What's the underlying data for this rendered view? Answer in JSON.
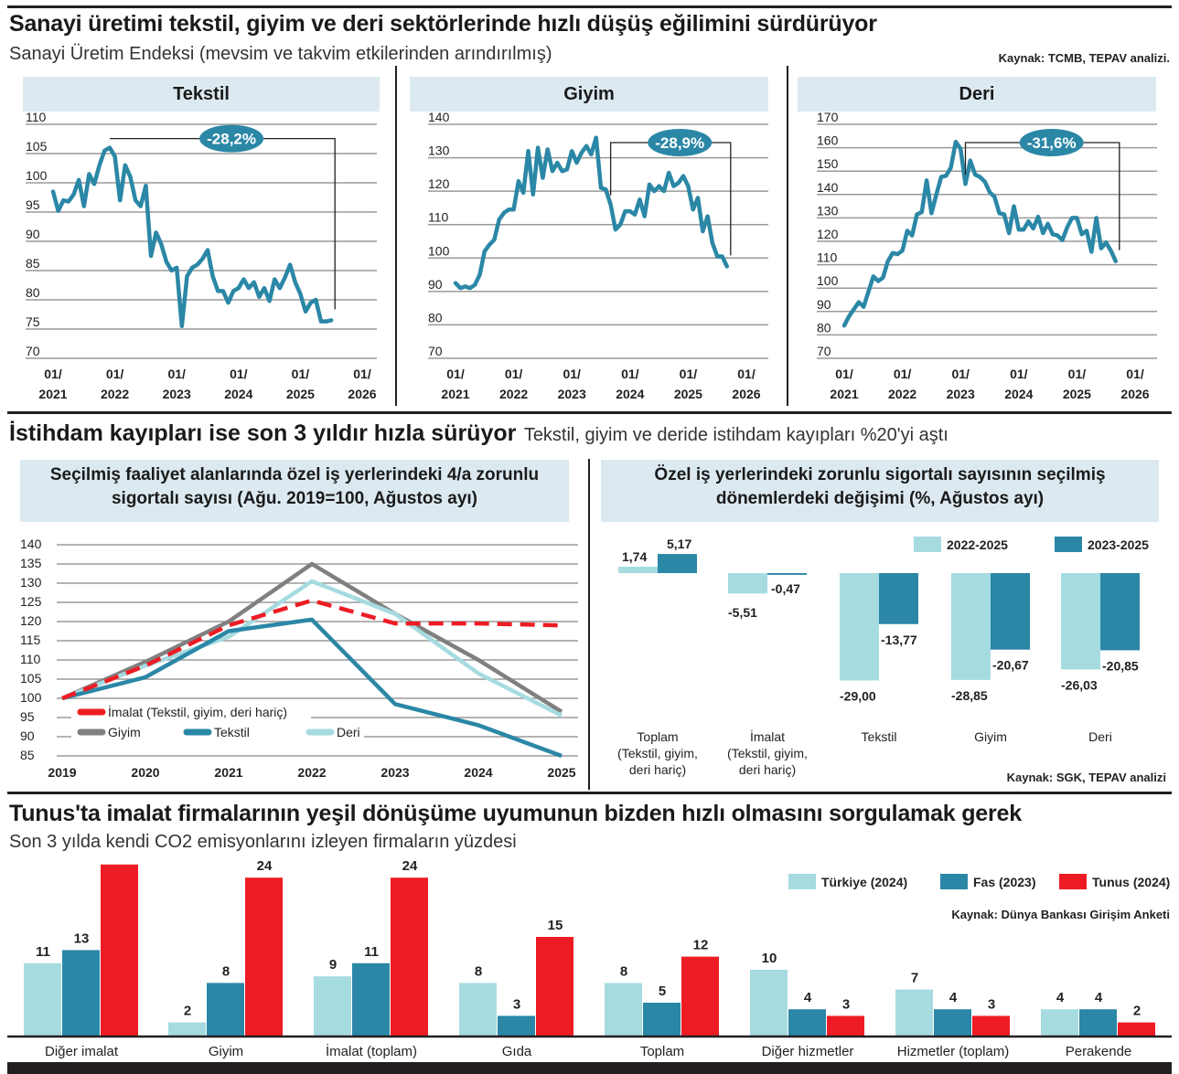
{
  "section1": {
    "title": "Sanayi üretimi tekstil, giyim ve deri sektörlerinde hızlı düşüş eğilimini sürdürüyor",
    "subtitle": "Sanayi Üretim Endeksi (mevsim ve takvim etkilerinden arındırılmış)",
    "source": "Kaynak: TCMB, TEPAV analizi."
  },
  "section2": {
    "title": "İstihdam kayıpları ise son 3 yıldır hızla sürüyor",
    "subtitle": "Tekstil, giyim ve deride istihdam kayıpları %20'yi aştı",
    "left_title": "Seçilmiş faaliyet alanlarında özel iş yerlerindeki 4/a zorunlu sigortalı sayısı (Ağu. 2019=100, Ağustos ayı)",
    "right_title": "Özel iş yerlerindeki zorunlu sigortalı sayısının seçilmiş dönemlerdeki değişimi (%, Ağustos ayı)",
    "source": "Kaynak: SGK, TEPAV analizi"
  },
  "section3": {
    "title": "Tunus'ta imalat firmalarının yeşil dönüşüme uyumunun bizden hızlı olmasını sorgulamak gerek",
    "subtitle": "Son 3 yılda kendi CO2 emisyonlarını izleyen firmaların yüzdesi",
    "source": "Kaynak: Dünya Bankası Girişim Anketi"
  },
  "colors": {
    "teal": "#2b87a6",
    "light_teal": "#a6dbe0",
    "red": "#ed1c24",
    "gray": "#808080",
    "panel_bg": "#dce9f0",
    "bubble": "#2b87a6"
  },
  "chart_data": [
    {
      "type": "line",
      "title": "Tekstil",
      "xlabel": "",
      "ylabel": "",
      "ylim": [
        70,
        110
      ],
      "yticks": [
        110,
        105,
        100,
        95,
        90,
        85,
        80,
        75,
        70
      ],
      "xtick_labels": [
        [
          "01/",
          "2021"
        ],
        [
          "01/",
          "2022"
        ],
        [
          "01/",
          "2023"
        ],
        [
          "01/",
          "2024"
        ],
        [
          "01/",
          "2025"
        ],
        [
          "01/",
          "2026"
        ]
      ],
      "x_start": "2021-01",
      "annotation": "-28,2%",
      "peak_index": 11,
      "series": [
        {
          "name": "Tekstil",
          "values": [
            98.5,
            95.2,
            97.0,
            96.8,
            98.0,
            100.5,
            96.0,
            101.5,
            99.8,
            103.0,
            105.5,
            106.0,
            104.5,
            97.0,
            103.0,
            101.0,
            97.0,
            96.0,
            99.5,
            87.5,
            91.5,
            89.5,
            86.5,
            85.0,
            85.5,
            75.5,
            84.0,
            85.5,
            86.0,
            87.0,
            88.5,
            84.0,
            81.5,
            81.5,
            79.5,
            81.5,
            82.0,
            83.5,
            82.0,
            83.0,
            80.5,
            82.0,
            79.8,
            83.5,
            82.0,
            83.8,
            86.0,
            83.0,
            81.0,
            78.0,
            79.5,
            80.0,
            76.3,
            76.3,
            76.5
          ]
        }
      ]
    },
    {
      "type": "line",
      "title": "Giyim",
      "xlabel": "",
      "ylabel": "",
      "ylim": [
        70,
        140
      ],
      "yticks": [
        140,
        130,
        120,
        110,
        100,
        90,
        80,
        70
      ],
      "xtick_labels": [
        [
          "01/",
          "2021"
        ],
        [
          "01/",
          "2022"
        ],
        [
          "01/",
          "2023"
        ],
        [
          "01/",
          "2024"
        ],
        [
          "01/",
          "2025"
        ],
        [
          "01/",
          "2026"
        ]
      ],
      "x_start": "2021-01",
      "annotation": "-28,9%",
      "peak_index": 32,
      "series": [
        {
          "name": "Giyim",
          "values": [
            92.5,
            91.0,
            91.5,
            91.0,
            92.0,
            95.0,
            102.0,
            104.0,
            105.5,
            111.5,
            113.5,
            114.5,
            114.5,
            123.0,
            119.5,
            132.0,
            119.0,
            133.0,
            124.0,
            132.5,
            126.0,
            128.5,
            126.0,
            126.5,
            132.0,
            128.5,
            131.5,
            133.5,
            131.0,
            136.0,
            121.0,
            120.5,
            116.0,
            108.5,
            110.0,
            114.0,
            114.0,
            113.0,
            117.5,
            112.5,
            122.0,
            120.0,
            121.5,
            120.0,
            125.5,
            121.5,
            122.5,
            124.5,
            121.5,
            114.5,
            118.0,
            108.0,
            112.5,
            104.5,
            100.5,
            100.5,
            97.5
          ]
        }
      ]
    },
    {
      "type": "line",
      "title": "Deri",
      "xlabel": "",
      "ylabel": "",
      "ylim": [
        70,
        170
      ],
      "yticks": [
        170,
        160,
        150,
        140,
        130,
        120,
        110,
        100,
        90,
        80,
        70
      ],
      "xtick_labels": [
        [
          "01/",
          "2021"
        ],
        [
          "01/",
          "2022"
        ],
        [
          "01/",
          "2023"
        ],
        [
          "01/",
          "2024"
        ],
        [
          "01/",
          "2025"
        ],
        [
          "01/",
          "2026"
        ]
      ],
      "x_start": "2021-01",
      "annotation": "-31,6%",
      "peak_index": 25,
      "series": [
        {
          "name": "Deri",
          "values": [
            84.0,
            88.0,
            91.0,
            94.0,
            92.0,
            98.5,
            105.0,
            103.0,
            104.5,
            111.5,
            115.0,
            114.5,
            116.0,
            124.5,
            122.5,
            131.5,
            132.5,
            146.0,
            132.0,
            140.0,
            147.5,
            148.0,
            151.5,
            162.5,
            159.5,
            144.5,
            154.5,
            148.5,
            147.5,
            145.5,
            141.0,
            139.0,
            132.0,
            131.5,
            123.5,
            135.0,
            125.0,
            125.0,
            128.5,
            125.5,
            130.5,
            123.5,
            127.5,
            123.0,
            122.5,
            120.5,
            126.0,
            130.0,
            130.0,
            123.0,
            124.5,
            115.5,
            130.0,
            117.0,
            119.5,
            116.0,
            111.5
          ]
        }
      ]
    },
    {
      "type": "line",
      "title": "Seçilmiş faaliyet alanlarında özel iş yerlerindeki 4/a zorunlu sigortalı sayısı (Ağu. 2019=100, Ağustos ayı)",
      "xlabel": "",
      "ylabel": "",
      "ylim": [
        85,
        140
      ],
      "yticks": [
        140,
        135,
        130,
        125,
        120,
        115,
        110,
        105,
        100,
        95,
        90,
        85
      ],
      "categories": [
        "2019",
        "2020",
        "2021",
        "2022",
        "2023",
        "2024",
        "2025"
      ],
      "legend_position": "bottom-left",
      "series": [
        {
          "name": "İmalat (Tekstil, giyim, deri hariç)",
          "color": "#ed1c24",
          "dashed": true,
          "values": [
            100,
            108.5,
            119,
            125.5,
            119.5,
            119.5,
            119
          ]
        },
        {
          "name": "Giyim",
          "color": "#808080",
          "dashed": false,
          "values": [
            100,
            109.5,
            120,
            135,
            122,
            110,
            96.5
          ]
        },
        {
          "name": "Tekstil",
          "color": "#2b87a6",
          "dashed": false,
          "values": [
            100,
            105.5,
            117.5,
            120.5,
            98.5,
            93,
            85
          ]
        },
        {
          "name": "Deri",
          "color": "#a6dbe0",
          "dashed": false,
          "values": [
            100,
            108.5,
            116,
            130.5,
            122,
            106.5,
            95.5
          ]
        }
      ]
    },
    {
      "type": "bar",
      "title": "Özel iş yerlerindeki zorunlu sigortalı sayısının seçilmiş dönemlerdeki değişimi (%, Ağustos ayı)",
      "xlabel": "",
      "ylabel": "",
      "categories": [
        [
          "Toplam",
          "(Tekstil, giyim,",
          "deri hariç)"
        ],
        [
          "İmalat",
          "(Tekstil, giyim,",
          "deri hariç)"
        ],
        [
          "Tekstil"
        ],
        [
          "Giyim"
        ],
        [
          "Deri"
        ]
      ],
      "legend_position": "top-right",
      "series": [
        {
          "name": "2022-2025",
          "color": "#a6dbe0",
          "values": [
            1.74,
            -5.51,
            -29.0,
            -28.85,
            -26.03
          ],
          "labels": [
            "1,74",
            "-5,51",
            "-29,00",
            "-28,85",
            "-26,03"
          ]
        },
        {
          "name": "2023-2025",
          "color": "#2b87a6",
          "values": [
            5.17,
            -0.47,
            -13.77,
            -20.67,
            -20.85
          ],
          "labels": [
            "5,17",
            "-0,47",
            "-13,77",
            "-20,67",
            "-20,85"
          ]
        }
      ]
    },
    {
      "type": "bar",
      "title": "Son 3 yılda kendi CO2 emisyonlarını izleyen firmaların yüzdesi",
      "xlabel": "",
      "ylabel": "",
      "categories": [
        "Diğer imalat",
        "Giyim",
        "İmalat (toplam)",
        "Gıda",
        "Toplam",
        "Diğer hizmetler",
        "Hizmetler (toplam)",
        "Perakende"
      ],
      "legend_position": "top-right",
      "series": [
        {
          "name": "Türkiye (2024)",
          "color": "#a6dbe0",
          "values": [
            11,
            2,
            9,
            8,
            8,
            10,
            7,
            4
          ]
        },
        {
          "name": "Fas (2023)",
          "color": "#2b87a6",
          "values": [
            13,
            8,
            11,
            3,
            5,
            4,
            4,
            4
          ]
        },
        {
          "name": "Tunus (2024)",
          "color": "#ed1c24",
          "values": [
            26,
            24,
            24,
            15,
            12,
            3,
            3,
            2
          ]
        }
      ]
    }
  ]
}
